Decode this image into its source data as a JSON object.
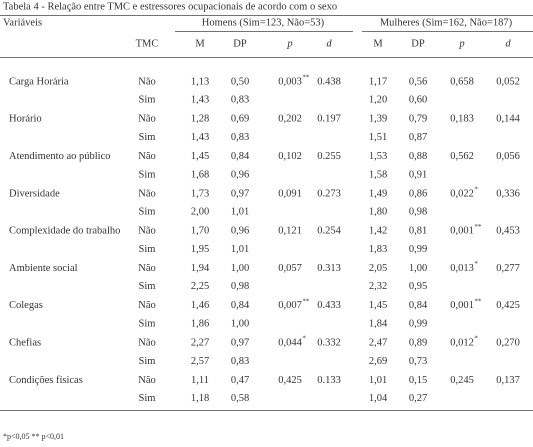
{
  "title": "Tabela 4 - Relação entre TMC e estressores ocupacionais de acordo com o sexo",
  "header": {
    "variable": "Variáveis",
    "men": "Homens (Sim=123, Não=53)",
    "women": "Mulheres (Sim=162, Não=187)",
    "columns": [
      "TMC",
      "M",
      "DP",
      "p",
      "d",
      "M",
      "DP",
      "p",
      "d"
    ]
  },
  "rows": [
    {
      "label": "Carga Horária",
      "no": {
        "tmc": "Não",
        "h_m": "1,13",
        "h_dp": "0,50",
        "h_p": "0,003",
        "h_p_sup": "**",
        "h_d": "0.438",
        "w_m": "1,17",
        "w_dp": "0,56",
        "w_p": "0,658",
        "w_d": "0,052"
      },
      "yes": {
        "tmc": "Sim",
        "h_m": "1,43",
        "h_dp": "0,83",
        "w_m": "1,20",
        "w_dp": "0,60"
      }
    },
    {
      "label": "Horário",
      "no": {
        "tmc": "Não",
        "h_m": "1,28",
        "h_dp": "0,69",
        "h_p": "0,202",
        "h_d": "0.197",
        "w_m": "1,39",
        "w_dp": "0,79",
        "w_p": "0,183",
        "w_d": "0,144"
      },
      "yes": {
        "tmc": "Sim",
        "h_m": "1,43",
        "h_dp": "0,83",
        "w_m": "1,51",
        "w_dp": "0,87"
      }
    },
    {
      "label": "Atendimento ao público",
      "no": {
        "tmc": "Não",
        "h_m": "1,45",
        "h_dp": "0,84",
        "h_p": "0,102",
        "h_d": "0.255",
        "w_m": "1,53",
        "w_dp": "0,88",
        "w_p": "0,562",
        "w_d": "0,056"
      },
      "yes": {
        "tmc": "Sim",
        "h_m": "1,68",
        "h_dp": "0,96",
        "w_m": "1,58",
        "w_dp": "0,91"
      }
    },
    {
      "label": "Diversidade",
      "no": {
        "tmc": "Não",
        "h_m": "1,73",
        "h_dp": "0,97",
        "h_p": "0,091",
        "h_d": "0.273",
        "w_m": "1,49",
        "w_dp": "0,86",
        "w_p": "0,022",
        "w_p_sup": "*",
        "w_d": "0,336"
      },
      "yes": {
        "tmc": "Sim",
        "h_m": "2,00",
        "h_dp": "1,01",
        "w_m": "1,80",
        "w_dp": "0,98"
      }
    },
    {
      "label": "Complexidade do trabalho",
      "no": {
        "tmc": "Não",
        "h_m": "1,70",
        "h_dp": "0,96",
        "h_p": "0,121",
        "h_d": "0.254",
        "w_m": "1,42",
        "w_dp": "0,81",
        "w_p": "0,001",
        "w_p_sup": "**",
        "w_d": "0,453"
      },
      "yes": {
        "tmc": "Sim",
        "h_m": "1,95",
        "h_dp": "1,01",
        "w_m": "1,83",
        "w_dp": "0,99"
      }
    },
    {
      "label": "Ambiente social",
      "no": {
        "tmc": "Não",
        "h_m": "1,94",
        "h_dp": "1,00",
        "h_p": "0,057",
        "h_d": "0.313",
        "w_m": "2,05",
        "w_dp": "1,00",
        "w_p": "0,013",
        "w_p_sup": "*",
        "w_d": "0,277"
      },
      "yes": {
        "tmc": "Sim",
        "h_m": "2,25",
        "h_dp": "0,98",
        "w_m": "2,32",
        "w_dp": "0,95"
      }
    },
    {
      "label": "Colegas",
      "no": {
        "tmc": "Não",
        "h_m": "1,46",
        "h_dp": "0,84",
        "h_p": "0,007",
        "h_p_sup": "**",
        "h_d": "0.433",
        "w_m": "1,45",
        "w_dp": "0,84",
        "w_p": "0,001",
        "w_p_sup": "**",
        "w_d": "0,425"
      },
      "yes": {
        "tmc": "Sim",
        "h_m": "1,86",
        "h_dp": "1,00",
        "w_m": "1,84",
        "w_dp": "0,99"
      }
    },
    {
      "label": "Chefias",
      "no": {
        "tmc": "Não",
        "h_m": "2,27",
        "h_dp": "0,97",
        "h_p": "0,044",
        "h_p_sup": "*",
        "h_d": "0.332",
        "w_m": "2,47",
        "w_dp": "0,89",
        "w_p": "0,012",
        "w_p_sup": "*",
        "w_d": "0,270"
      },
      "yes": {
        "tmc": "Sim",
        "h_m": "2,57",
        "h_dp": "0,83",
        "w_m": "2,69",
        "w_dp": "0,73"
      }
    },
    {
      "label": "Condições físicas",
      "no": {
        "tmc": "Não",
        "h_m": "1,11",
        "h_dp": "0,47",
        "h_p": "0,425",
        "h_d": "0.133",
        "w_m": "1,01",
        "w_dp": "0,15",
        "w_p": "0,245",
        "w_d": "0,137"
      },
      "yes": {
        "tmc": "Sim",
        "h_m": "1,18",
        "h_dp": "0,58",
        "w_m": "1,04",
        "w_dp": "0,27"
      }
    }
  ],
  "footnote": "*p<0,05 ** p<0,01"
}
